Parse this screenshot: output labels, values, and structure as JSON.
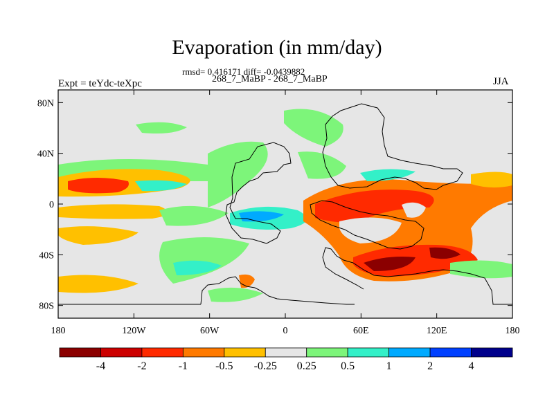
{
  "title": "Evaporation (in mm/day)",
  "subtitle_line1": "rmsd= 0.416171 diff= -0.0439882",
  "subtitle_line2": "268_7_MaBP - 268_7_MaBP",
  "left_label": "Expt = teYdc-teXpc",
  "right_label": "JJA",
  "chart_data": {
    "type": "heatmap",
    "title": "Evaporation (in mm/day)",
    "projection": "cylindrical equidistant",
    "lon_range": [
      -180,
      180
    ],
    "lat_range": [
      -90,
      90
    ],
    "x_ticks": [
      {
        "value": -180,
        "label": "180"
      },
      {
        "value": -120,
        "label": "120W"
      },
      {
        "value": -60,
        "label": "60W"
      },
      {
        "value": 0,
        "label": "0"
      },
      {
        "value": 60,
        "label": "60E"
      },
      {
        "value": 120,
        "label": "120E"
      },
      {
        "value": 180,
        "label": "180"
      }
    ],
    "y_ticks": [
      {
        "value": 80,
        "label": "80N"
      },
      {
        "value": 40,
        "label": "40N"
      },
      {
        "value": 0,
        "label": "0"
      },
      {
        "value": -40,
        "label": "40S"
      },
      {
        "value": -80,
        "label": "80S"
      }
    ],
    "colorbar": {
      "labels": [
        "-4",
        "-2",
        "-1",
        "-0.5",
        "-0.25",
        "0.25",
        "0.5",
        "1",
        "2",
        "4"
      ],
      "colors": [
        "#8b0000",
        "#cc0000",
        "#ff2a00",
        "#ff7a00",
        "#ffc000",
        "#e6e6e6",
        "#7df57a",
        "#33f0c8",
        "#00aaff",
        "#0040ff",
        "#00008b"
      ]
    },
    "background_color": "#e6e6e6"
  }
}
